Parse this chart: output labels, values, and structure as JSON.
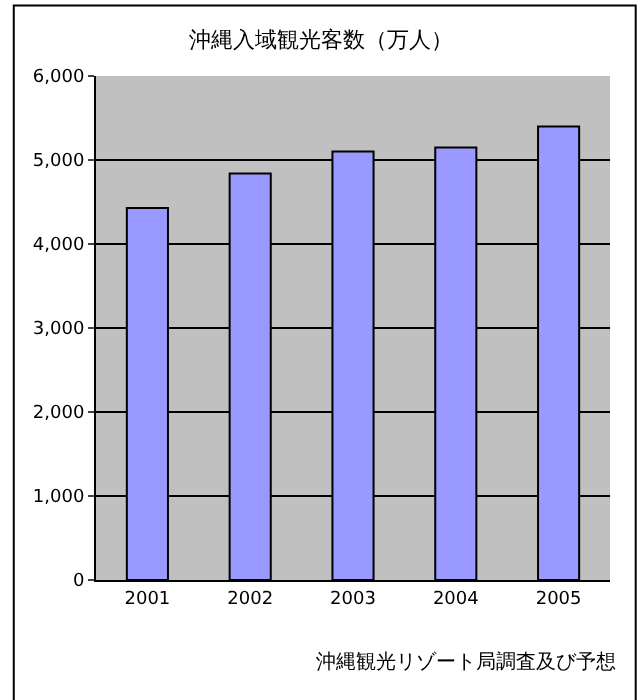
{
  "chart_data": {
    "type": "bar",
    "title": "沖縄入域観光客数（万人）",
    "categories": [
      "2001",
      "2002",
      "2003",
      "2004",
      "2005"
    ],
    "values": [
      4430,
      4840,
      5100,
      5150,
      5400
    ],
    "color": "#9999ff",
    "ylim": [
      0,
      6000
    ],
    "yticks": [
      {
        "value": 0,
        "label": "0"
      },
      {
        "value": 1000,
        "label": "1,000"
      },
      {
        "value": 2000,
        "label": "2,000"
      },
      {
        "value": 3000,
        "label": "3,000"
      },
      {
        "value": 4000,
        "label": "4,000"
      },
      {
        "value": 5000,
        "label": "5,000"
      },
      {
        "value": 6000,
        "label": "6,000"
      }
    ],
    "grid": "y",
    "annotations": [
      "沖縄観光リゾート局調査及び予想"
    ]
  }
}
